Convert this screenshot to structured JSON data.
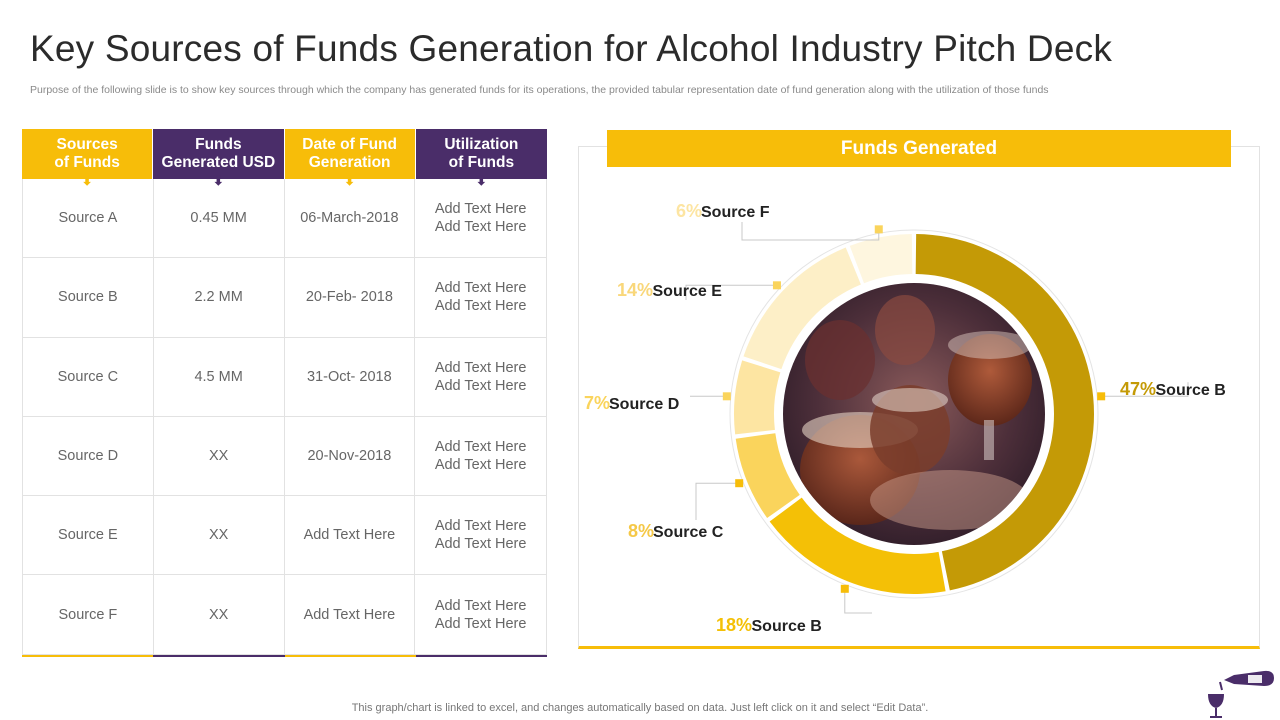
{
  "slide": {
    "title": "Key Sources of Funds Generation for Alcohol Industry Pitch Deck",
    "subtitle": "Purpose of the following slide is to show key sources  through which the company has generated funds for its operations, the  provided tabular representation date of fund generation along with the utilization of those funds",
    "footnote": "This graph/chart is linked to excel,  and changes automatically based on data. Just left click on it and select “Edit Data”."
  },
  "table": {
    "headers": [
      {
        "label": "Sources of Funds",
        "line1": "Sources",
        "line2": "of Funds"
      },
      {
        "label": "Funds Generated USD",
        "line1": "Funds",
        "line2": "Generated USD"
      },
      {
        "label": "Date of Fund Generation",
        "line1": "Date of Fund",
        "line2": "Generation"
      },
      {
        "label": "Utilization of Funds",
        "line1": "Utilization",
        "line2": "of Funds"
      }
    ],
    "rows": [
      {
        "source": "Source A",
        "funds": "0.45 MM",
        "date": "06-March-2018",
        "util1": "Add Text Here",
        "util2": "Add Text Here"
      },
      {
        "source": "Source B",
        "funds": "2.2 MM",
        "date": "20-Feb- 2018",
        "util1": "Add Text Here",
        "util2": "Add Text Here"
      },
      {
        "source": "Source C",
        "funds": "4.5 MM",
        "date": "31-Oct- 2018",
        "util1": "Add Text Here",
        "util2": "Add Text Here"
      },
      {
        "source": "Source D",
        "funds": "XX",
        "date": "20-Nov-2018",
        "util1": "Add Text Here",
        "util2": "Add Text Here"
      },
      {
        "source": "Source E",
        "funds": "XX",
        "date": "Add Text Here",
        "util1": "Add Text Here",
        "util2": "Add Text Here"
      },
      {
        "source": "Source F",
        "funds": "XX",
        "date": "Add Text Here",
        "util1": "Add Text Here",
        "util2": "Add Text Here"
      }
    ]
  },
  "colors": {
    "yellow": "#f7bd09",
    "purple": "#4a2d69",
    "gold": "#c49a06"
  },
  "icons": {
    "header_arrow": "down-arrow-icon",
    "bottle": "wine-bottle-glass-icon",
    "center_image": "beer-glasses-toast-photo"
  },
  "chart_data": {
    "type": "pie",
    "title": "Funds Generated",
    "series": [
      {
        "label": "Source B",
        "value": 47,
        "display": "47%",
        "color": "#c49a06"
      },
      {
        "label": "Source B",
        "value": 18,
        "display": "18%",
        "color": "#f4c006"
      },
      {
        "label": "Source C",
        "value": 8,
        "display": "8%",
        "color": "#fad45c"
      },
      {
        "label": "Source D",
        "value": 7,
        "display": "7%",
        "color": "#fde5a2"
      },
      {
        "label": "Source E",
        "value": 14,
        "display": "14%",
        "color": "#fdefc7"
      },
      {
        "label": "Source F",
        "value": 6,
        "display": "6%",
        "color": "#fef6df"
      }
    ]
  }
}
